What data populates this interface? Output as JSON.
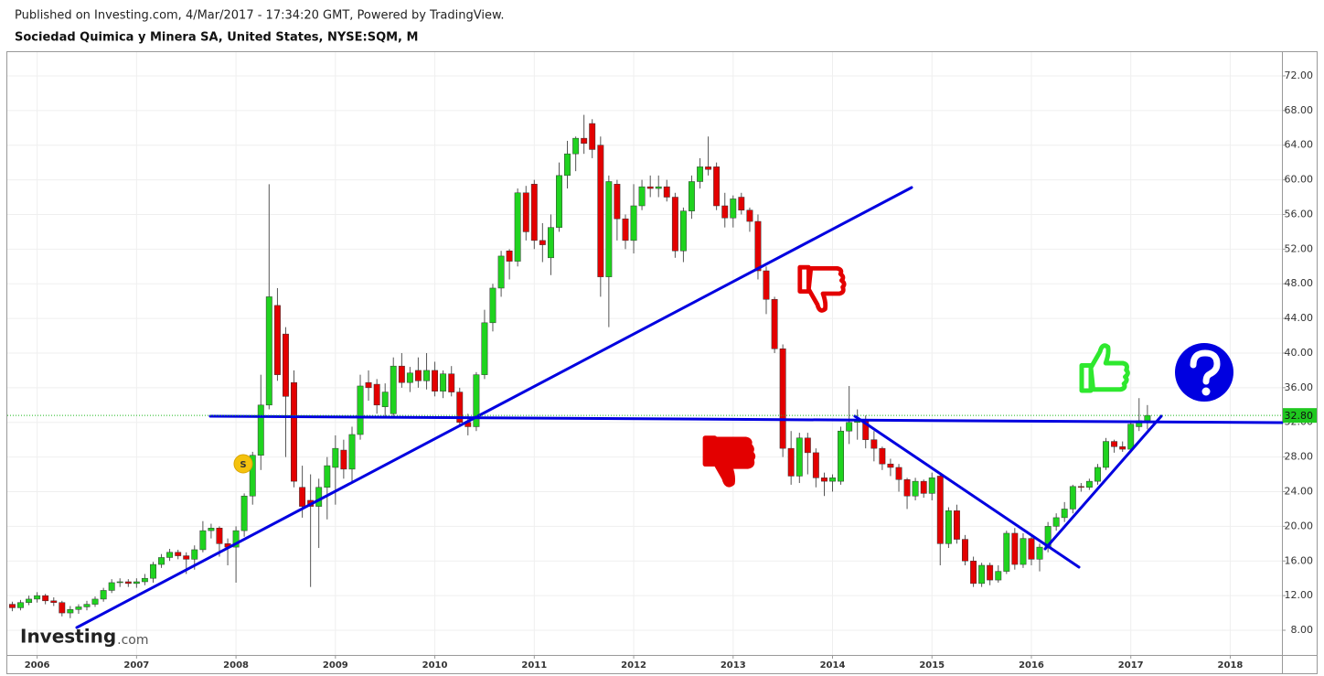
{
  "header": {
    "published": "Published on Investing.com, 4/Mar/2017 - 17:34:20 GMT, Powered by TradingView.",
    "symbol": "Sociedad Quimica y Minera SA, United States, NYSE:SQM, M"
  },
  "watermark": {
    "brand": "Investing",
    "suffix": ".com"
  },
  "chart_data": {
    "type": "candlestick",
    "up_color": "#1fd31f",
    "down_color": "#e30000",
    "grid": true,
    "event_marker": "S",
    "last_price": {
      "value": 32.8,
      "label": "32.80"
    },
    "xlim": [
      2005.7,
      2018.52
    ],
    "xticks": [
      2006,
      2007,
      2008,
      2009,
      2010,
      2011,
      2012,
      2013,
      2014,
      2015,
      2016,
      2017,
      2018
    ],
    "ylim": [
      5.15,
      74.74
    ],
    "yticks": [
      {
        "value": 8,
        "label": "8.00"
      },
      {
        "value": 12,
        "label": "12.00"
      },
      {
        "value": 16,
        "label": "16.00"
      },
      {
        "value": 20,
        "label": "20.00"
      },
      {
        "value": 24,
        "label": "24.00"
      },
      {
        "value": 28,
        "label": "28.00"
      },
      {
        "value": 32,
        "label": "32.00"
      },
      {
        "value": 36,
        "label": "36.00"
      },
      {
        "value": 40,
        "label": "40.00"
      },
      {
        "value": 44,
        "label": "44.00"
      },
      {
        "value": 48,
        "label": "48.00"
      },
      {
        "value": 52,
        "label": "52.00"
      },
      {
        "value": 56,
        "label": "56.00"
      },
      {
        "value": 60,
        "label": "60.00"
      },
      {
        "value": 64,
        "label": "64.00"
      },
      {
        "value": 68,
        "label": "68.00"
      },
      {
        "value": 72,
        "label": "72.00"
      }
    ],
    "x": [
      2005.75,
      2005.833,
      2005.917,
      2006.0,
      2006.083,
      2006.167,
      2006.25,
      2006.333,
      2006.417,
      2006.5,
      2006.583,
      2006.667,
      2006.75,
      2006.833,
      2006.917,
      2007.0,
      2007.083,
      2007.167,
      2007.25,
      2007.333,
      2007.417,
      2007.5,
      2007.583,
      2007.667,
      2007.75,
      2007.833,
      2007.917,
      2008.0,
      2008.083,
      2008.167,
      2008.25,
      2008.333,
      2008.417,
      2008.5,
      2008.583,
      2008.667,
      2008.75,
      2008.833,
      2008.917,
      2009.0,
      2009.083,
      2009.167,
      2009.25,
      2009.333,
      2009.417,
      2009.5,
      2009.583,
      2009.667,
      2009.75,
      2009.833,
      2009.917,
      2010.0,
      2010.083,
      2010.167,
      2010.25,
      2010.333,
      2010.417,
      2010.5,
      2010.583,
      2010.667,
      2010.75,
      2010.833,
      2010.917,
      2011.0,
      2011.083,
      2011.167,
      2011.25,
      2011.333,
      2011.417,
      2011.5,
      2011.583,
      2011.667,
      2011.75,
      2011.833,
      2011.917,
      2012.0,
      2012.083,
      2012.167,
      2012.25,
      2012.333,
      2012.417,
      2012.5,
      2012.583,
      2012.667,
      2012.75,
      2012.833,
      2012.917,
      2013.0,
      2013.083,
      2013.167,
      2013.25,
      2013.333,
      2013.417,
      2013.5,
      2013.583,
      2013.667,
      2013.75,
      2013.833,
      2013.917,
      2014.0,
      2014.083,
      2014.167,
      2014.25,
      2014.333,
      2014.417,
      2014.5,
      2014.583,
      2014.667,
      2014.75,
      2014.833,
      2014.917,
      2015.0,
      2015.083,
      2015.167,
      2015.25,
      2015.333,
      2015.417,
      2015.5,
      2015.583,
      2015.667,
      2015.75,
      2015.833,
      2015.917,
      2016.0,
      2016.083,
      2016.167,
      2016.25,
      2016.333,
      2016.417,
      2016.5,
      2016.583,
      2016.667,
      2016.75,
      2016.833,
      2016.917,
      2017.0,
      2017.083,
      2017.167
    ],
    "open": [
      11.0,
      10.6,
      11.2,
      11.6,
      12.0,
      11.4,
      11.2,
      10.0,
      10.4,
      10.7,
      11.0,
      11.6,
      12.6,
      13.5,
      13.6,
      13.4,
      13.6,
      14.0,
      15.6,
      16.4,
      17.0,
      16.6,
      16.2,
      17.3,
      19.5,
      19.8,
      18.0,
      17.6,
      19.5,
      23.5,
      28.2,
      34.0,
      45.5,
      42.2,
      36.6,
      24.5,
      23.0,
      22.3,
      24.5,
      26.8,
      28.8,
      26.6,
      30.6,
      36.6,
      36.4,
      33.8,
      33.0,
      38.5,
      36.6,
      38.0,
      36.8,
      38.0,
      35.6,
      37.6,
      35.5,
      32.0,
      31.5,
      37.5,
      43.5,
      47.5,
      51.8,
      50.6,
      58.5,
      59.5,
      53.0,
      51.0,
      54.5,
      60.5,
      63.0,
      64.8,
      66.5,
      64.0,
      48.8,
      59.5,
      55.5,
      53.0,
      57.0,
      59.2,
      59.0,
      59.2,
      58.0,
      51.8,
      56.4,
      59.8,
      61.5,
      61.5,
      57.0,
      55.6,
      58.0,
      56.5,
      55.2,
      49.5,
      46.2,
      40.5,
      29.0,
      25.8,
      30.2,
      28.5,
      25.6,
      25.2,
      25.2,
      31.0,
      32.0,
      32.2,
      30.0,
      29.0,
      27.2,
      26.8,
      25.4,
      23.5,
      25.2,
      23.8,
      25.8,
      18.0,
      21.8,
      18.5,
      16.0,
      13.4,
      15.5,
      13.8,
      14.8,
      19.2,
      15.6,
      18.6,
      16.2,
      17.6,
      20.0,
      21.0,
      22.0,
      24.6,
      24.5,
      25.2,
      26.8,
      29.8,
      29.2,
      28.9,
      31.5,
      32.2
    ],
    "high": [
      11.3,
      11.5,
      12.0,
      12.4,
      12.2,
      11.8,
      11.4,
      10.8,
      11.0,
      11.4,
      11.9,
      12.9,
      13.9,
      14.0,
      13.9,
      14.0,
      14.5,
      15.9,
      16.8,
      17.4,
      17.3,
      17.0,
      17.8,
      20.6,
      20.3,
      20.0,
      18.6,
      20.0,
      23.8,
      28.6,
      37.5,
      59.5,
      47.5,
      43.0,
      38.0,
      27.0,
      26.0,
      25.5,
      28.0,
      30.5,
      30.0,
      31.5,
      37.5,
      38.0,
      37.0,
      36.5,
      39.5,
      40.0,
      38.4,
      39.5,
      40.0,
      39.0,
      38.0,
      38.5,
      36.0,
      33.0,
      37.8,
      45.0,
      48.0,
      51.8,
      52.0,
      59.0,
      59.3,
      60.0,
      55.0,
      56.0,
      62.0,
      64.5,
      65.0,
      67.5,
      67.0,
      65.0,
      60.5,
      60.0,
      56.0,
      59.5,
      60.0,
      60.5,
      60.5,
      60.0,
      58.5,
      56.8,
      60.5,
      62.5,
      65.0,
      62.0,
      58.5,
      58.2,
      58.5,
      56.8,
      56.0,
      50.0,
      46.5,
      41.0,
      31.0,
      30.8,
      30.8,
      29.0,
      26.2,
      26.0,
      31.5,
      36.2,
      33.5,
      32.8,
      31.0,
      29.2,
      27.8,
      27.2,
      25.6,
      25.6,
      25.4,
      26.2,
      26.0,
      22.2,
      22.5,
      19.0,
      16.5,
      15.8,
      15.8,
      15.5,
      19.5,
      19.8,
      19.2,
      19.0,
      18.0,
      20.5,
      21.5,
      22.8,
      24.8,
      25.0,
      25.5,
      27.2,
      30.2,
      30.0,
      29.8,
      32.2,
      34.8,
      34.0
    ],
    "low": [
      10.2,
      10.3,
      10.9,
      11.2,
      11.0,
      10.8,
      9.6,
      9.4,
      9.9,
      10.3,
      10.7,
      11.3,
      12.3,
      13.0,
      13.0,
      12.9,
      13.2,
      13.5,
      15.2,
      16.0,
      16.2,
      14.5,
      15.0,
      17.0,
      18.6,
      16.5,
      15.5,
      13.5,
      18.8,
      22.5,
      26.5,
      33.5,
      36.8,
      28.0,
      24.5,
      21.0,
      13.0,
      17.5,
      20.8,
      22.5,
      25.5,
      25.0,
      30.0,
      34.5,
      33.0,
      32.5,
      32.5,
      36.0,
      35.5,
      36.0,
      35.8,
      35.0,
      34.8,
      35.0,
      31.5,
      30.5,
      31.0,
      37.0,
      42.5,
      46.5,
      48.5,
      50.0,
      53.0,
      52.0,
      50.5,
      49.0,
      54.0,
      59.0,
      61.0,
      63.0,
      62.5,
      46.5,
      43.0,
      53.0,
      52.0,
      51.5,
      56.5,
      58.0,
      58.0,
      57.5,
      51.0,
      50.5,
      55.5,
      59.0,
      60.5,
      56.5,
      54.5,
      54.5,
      56.0,
      54.0,
      48.5,
      44.5,
      40.0,
      28.0,
      24.8,
      25.0,
      26.0,
      24.5,
      23.5,
      24.0,
      24.8,
      29.5,
      30.0,
      29.0,
      27.5,
      26.5,
      25.8,
      24.0,
      22.0,
      23.0,
      23.3,
      23.0,
      15.5,
      17.5,
      18.0,
      15.5,
      13.0,
      13.0,
      13.2,
      13.5,
      14.5,
      15.0,
      15.2,
      15.5,
      14.8,
      17.0,
      19.5,
      20.5,
      21.5,
      24.0,
      24.2,
      24.8,
      26.5,
      28.5,
      28.6,
      28.5,
      31.0,
      31.2
    ],
    "close": [
      10.6,
      11.2,
      11.6,
      12.0,
      11.4,
      11.2,
      10.0,
      10.4,
      10.7,
      11.0,
      11.6,
      12.6,
      13.5,
      13.6,
      13.4,
      13.6,
      14.0,
      15.6,
      16.4,
      17.0,
      16.6,
      16.2,
      17.3,
      19.5,
      19.8,
      18.0,
      17.6,
      19.5,
      23.5,
      28.2,
      34.0,
      46.5,
      37.5,
      35.0,
      25.2,
      22.3,
      22.3,
      24.5,
      27.0,
      29.0,
      26.6,
      30.6,
      36.2,
      36.0,
      34.0,
      35.5,
      38.5,
      36.6,
      37.7,
      36.8,
      38.0,
      35.6,
      37.6,
      35.5,
      32.0,
      31.5,
      37.5,
      43.5,
      47.5,
      51.2,
      50.6,
      58.5,
      54.0,
      53.0,
      52.5,
      54.5,
      60.5,
      63.0,
      64.8,
      64.2,
      63.5,
      48.8,
      59.8,
      55.5,
      53.0,
      57.0,
      59.2,
      59.0,
      59.2,
      58.0,
      51.8,
      56.4,
      59.8,
      61.5,
      61.2,
      57.0,
      55.6,
      57.8,
      56.5,
      55.2,
      49.5,
      46.2,
      40.5,
      29.0,
      25.8,
      30.2,
      28.5,
      25.6,
      25.2,
      25.6,
      31.0,
      32.0,
      32.3,
      30.0,
      29.0,
      27.2,
      26.8,
      25.4,
      23.5,
      25.2,
      23.8,
      25.6,
      18.0,
      21.8,
      18.5,
      16.0,
      13.4,
      15.5,
      13.8,
      14.8,
      19.2,
      15.6,
      18.6,
      16.2,
      17.6,
      20.0,
      21.0,
      22.0,
      24.6,
      24.5,
      25.2,
      26.8,
      29.8,
      29.2,
      28.9,
      31.8,
      32.2,
      32.8
    ]
  }
}
